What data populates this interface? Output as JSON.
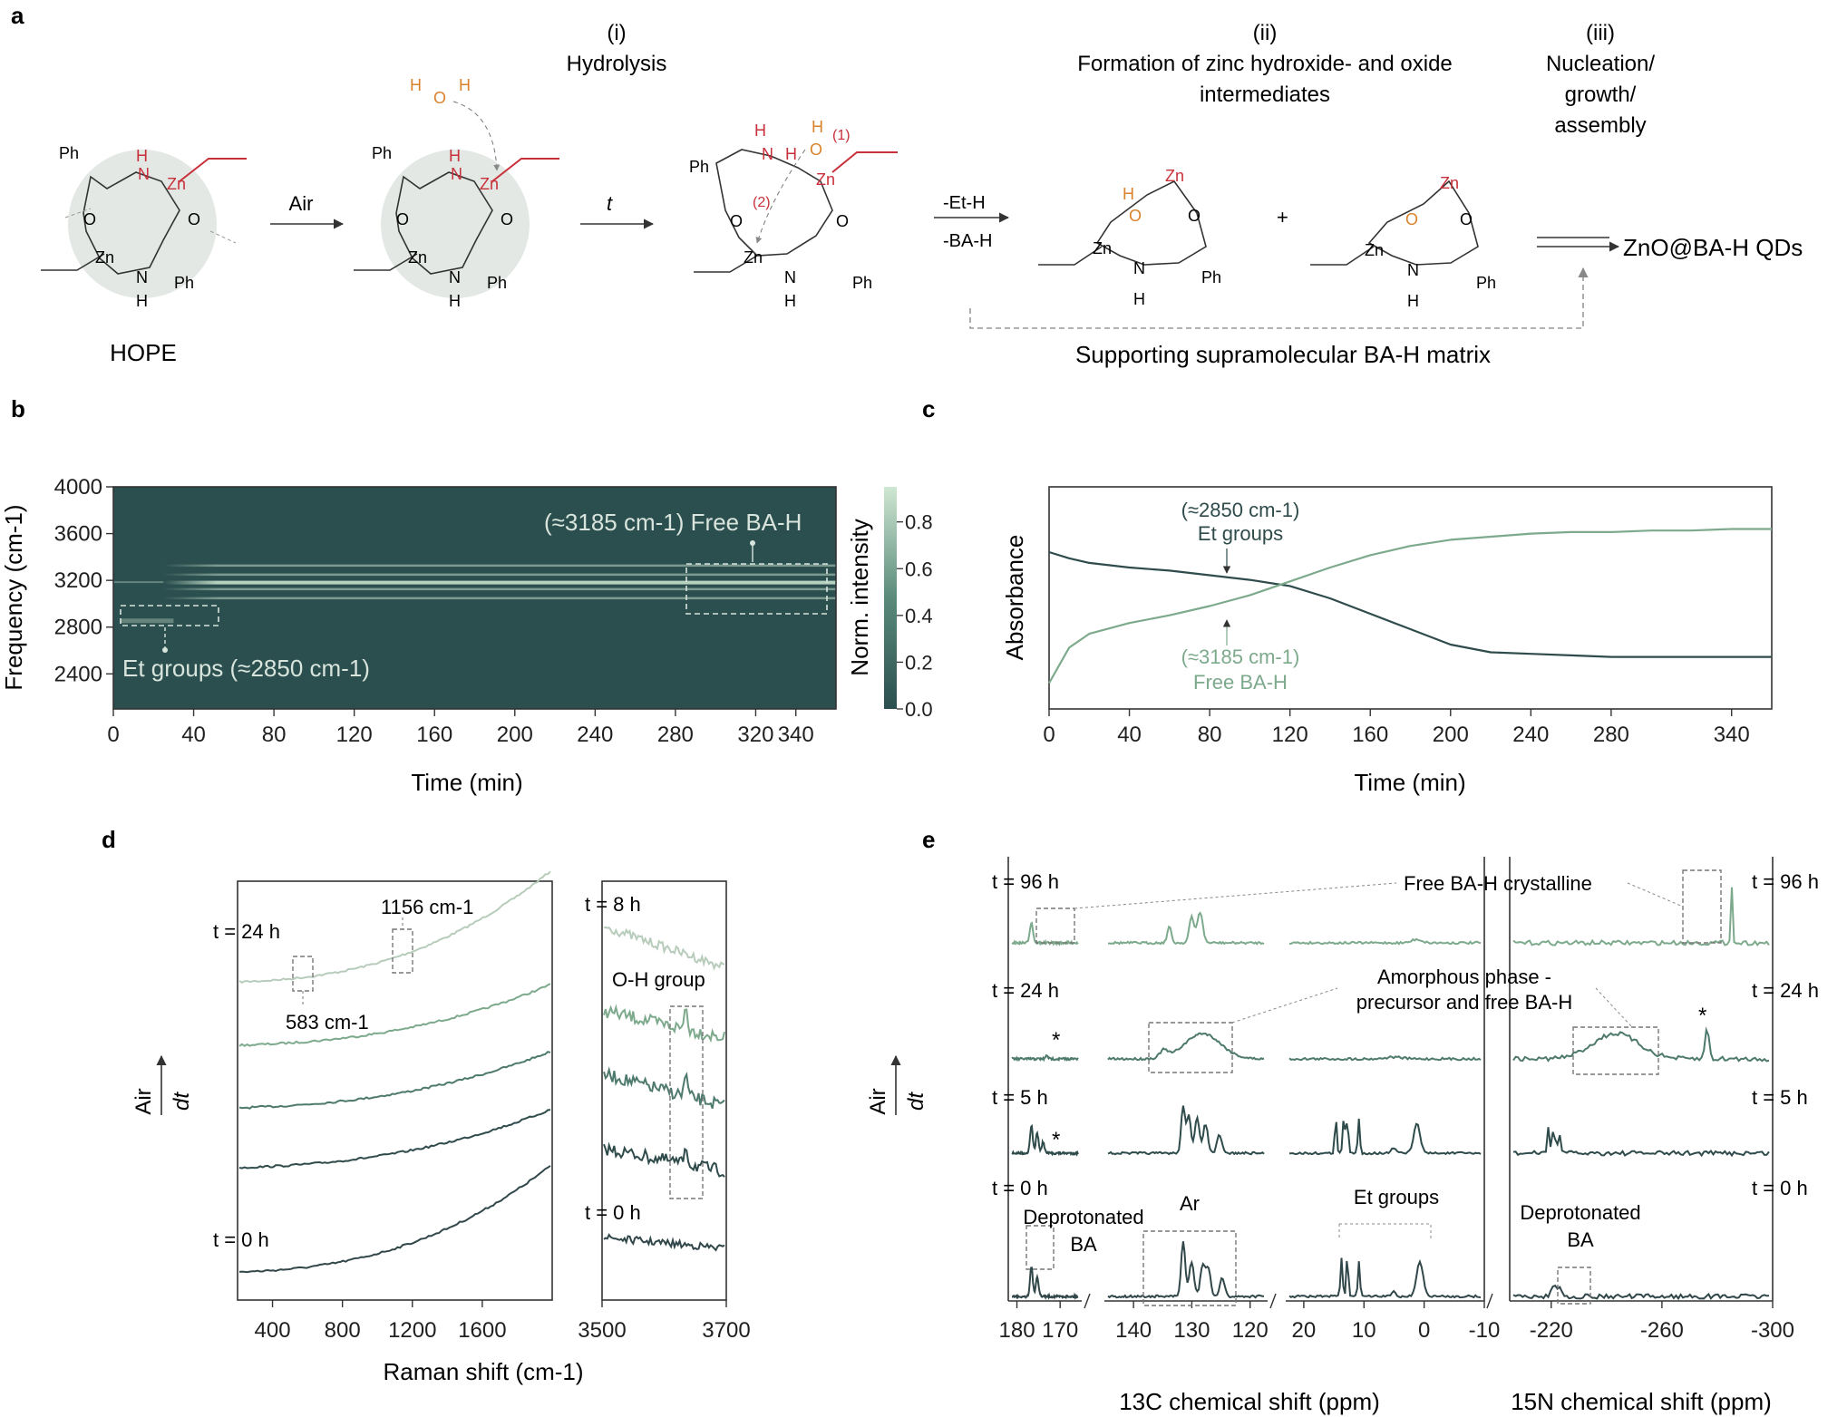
{
  "colors": {
    "dark": "#2f4b4b",
    "mid": "#4e7a6e",
    "light": "#7daa8c",
    "pale": "#b7ccbb",
    "heat_bg": "#2b4f4f",
    "heat_line": "#cfe7d2",
    "red": "#c8303a",
    "orange": "#d9822b"
  },
  "panel_a": {
    "letter": "a",
    "step_i_num": "(i)",
    "step_i_title": "Hydrolysis",
    "step_ii_num": "(ii)",
    "step_ii_line1": "Formation of zinc hydroxide- and oxide",
    "step_ii_line2": "intermediates",
    "step_iii_num": "(iii)",
    "step_iii_line1": "Nucleation/",
    "step_iii_line2": "growth/",
    "step_iii_line3": "assembly",
    "arrow1_label": "Air",
    "arrow2_label": "t",
    "arrow3_top": "-Et-H",
    "arrow3_bottom": "-BA-H",
    "hope_label": "HOPE",
    "product": "ZnO@BA-H QDs",
    "matrix_label": "Supporting supramolecular BA-H matrix",
    "atoms": {
      "Zn": "Zn",
      "N": "N",
      "O": "O",
      "H": "H",
      "Ph": "Ph",
      "plus": "+",
      "step1": "(1)",
      "step2": "(2)"
    }
  },
  "panel_b": {
    "letter": "b",
    "ylabel": "Frequency (cm-1)",
    "xlabel": "Time (min)",
    "xticks": [
      0,
      40,
      80,
      120,
      160,
      200,
      240,
      280,
      320,
      340
    ],
    "yticks": [
      2400,
      2800,
      3200,
      3600,
      4000
    ],
    "colorbar_label": "Norm. intensity",
    "colorbar_ticks": [
      "0.0",
      "0.2",
      "0.4",
      "0.6",
      "0.8"
    ],
    "annot_free": "(≈3185 cm-1) Free BA-H",
    "annot_et": "Et groups (≈2850 cm-1)"
  },
  "panel_c": {
    "letter": "c",
    "ylabel": "Absorbance",
    "xlabel": "Time (min)",
    "xticks": [
      0,
      40,
      80,
      120,
      160,
      200,
      240,
      280,
      340
    ],
    "annot_et_1": "(≈2850 cm-1)",
    "annot_et_2": "Et groups",
    "annot_free_1": "(≈3185 cm-1)",
    "annot_free_2": "Free BA-H"
  },
  "panel_d": {
    "letter": "d",
    "xlabel": "Raman shift (cm-1)",
    "xticks_left": [
      400,
      800,
      1200,
      1600
    ],
    "xticks_right": [
      3500,
      3700
    ],
    "t24": "t = 24 h",
    "t0": "t = 0 h",
    "t8": "t = 8 h",
    "t0r": "t = 0 h",
    "peak1156": "1156 cm-1",
    "peak583": "583 cm-1",
    "oh": "O-H group",
    "air": "Air",
    "dt": "dt"
  },
  "panel_e": {
    "letter": "e",
    "xlabel_c": "13C chemical shift (ppm)",
    "xlabel_n": "15N chemical shift (ppm)",
    "xticks_c1": [
      180,
      170
    ],
    "xticks_c2": [
      140,
      130,
      120
    ],
    "xticks_c3": [
      20,
      10,
      0,
      -10
    ],
    "xticks_n": [
      -220,
      -260,
      -300
    ],
    "times": [
      "t = 96 h",
      "t = 24 h",
      "t = 5 h",
      "t = 0 h"
    ],
    "free_cryst": "Free BA-H crystalline",
    "amorph_1": "Amorphous phase -",
    "amorph_2": "precursor and free BA-H",
    "deprot_1": "Deprotonated",
    "deprot_2": "BA",
    "ar": "Ar",
    "et_groups": "Et groups",
    "star": "*",
    "air": "Air",
    "dt": "dt"
  },
  "chart_data": [
    {
      "type": "heatmap",
      "panel": "b",
      "xlabel": "Time (min)",
      "ylabel": "Frequency (cm-1)",
      "xlim": [
        0,
        360
      ],
      "ylim": [
        2100,
        4000
      ],
      "bands": [
        {
          "name": "Free BA-H",
          "center_cm1": 3185,
          "t_start_min": 25,
          "t_end_min": 360
        },
        {
          "name": "Et groups",
          "center_cm1": 2850,
          "t_start_min": 0,
          "t_end_min": 30
        }
      ],
      "colorbar": {
        "label": "Norm. intensity",
        "range": [
          0.0,
          0.95
        ]
      }
    },
    {
      "type": "line",
      "panel": "c",
      "xlabel": "Time (min)",
      "ylabel": "Absorbance",
      "xlim": [
        0,
        360
      ],
      "x": [
        0,
        10,
        20,
        40,
        60,
        80,
        100,
        120,
        140,
        160,
        180,
        200,
        220,
        240,
        260,
        280,
        300,
        320,
        340,
        360
      ],
      "series": [
        {
          "name": "Et groups (≈2850 cm-1)",
          "values": [
            0.9,
            0.86,
            0.83,
            0.8,
            0.78,
            0.75,
            0.72,
            0.68,
            0.6,
            0.5,
            0.4,
            0.3,
            0.25,
            0.24,
            0.23,
            0.22,
            0.22,
            0.22,
            0.22,
            0.22
          ]
        },
        {
          "name": "Free BA-H (≈3185 cm-1)",
          "values": [
            0.05,
            0.28,
            0.37,
            0.44,
            0.49,
            0.55,
            0.62,
            0.71,
            0.8,
            0.88,
            0.94,
            0.98,
            1.0,
            1.02,
            1.03,
            1.03,
            1.04,
            1.04,
            1.05,
            1.05
          ]
        }
      ]
    }
  ]
}
